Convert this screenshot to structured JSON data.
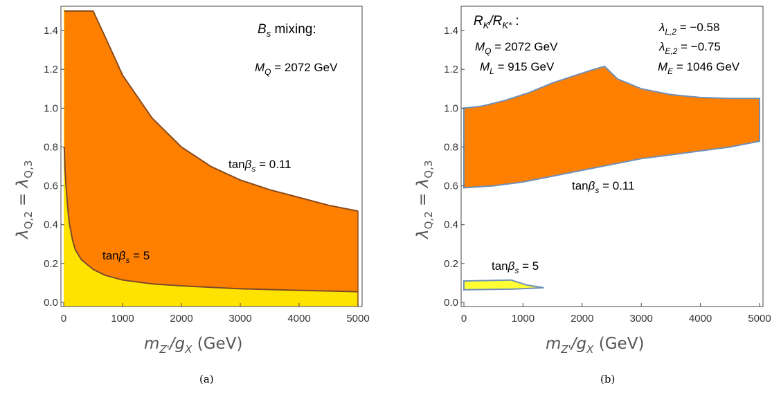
{
  "chart_data": [
    {
      "type": "area",
      "caption": "(a)",
      "xlabel": {
        "main": "m",
        "sub": "Z'",
        "slash": "/g",
        "sub2": "X",
        "units": " (GeV)"
      },
      "ylabel": {
        "main": "λ",
        "sub1": "Q,2",
        "eq": " = λ",
        "sub2": "Q,3"
      },
      "xlim": [
        0,
        5000
      ],
      "ylim": [
        0,
        1.5
      ],
      "xticks": [
        "0",
        "1000",
        "2000",
        "3000",
        "4000",
        "5000"
      ],
      "yticks": [
        "0.0",
        "0.2",
        "0.4",
        "0.6",
        "0.8",
        "1.0",
        "1.2",
        "1.4"
      ],
      "grid": false,
      "annotations": {
        "title": {
          "main": "B",
          "sub": "s",
          "rest": " mixing:"
        },
        "mass": {
          "main": "M",
          "sub": "Q",
          "rest": " = 2072 GeV"
        },
        "label_big": {
          "prefix": "tan",
          "greek": "β",
          "sub": "s",
          "rest": " = 0.11"
        },
        "label_small": {
          "prefix": "tan",
          "greek": "β",
          "sub": "s",
          "rest": " = 5"
        }
      },
      "series": [
        {
          "name": "tanβs = 0.11",
          "color": "#ff8000",
          "x": [
            10,
            60,
            150,
            300,
            500,
            700,
            1000,
            1500,
            2000,
            2500,
            3000,
            3500,
            4000,
            4500,
            5000
          ],
          "y": [
            1.5,
            1.5,
            1.5,
            1.5,
            1.5,
            1.37,
            1.17,
            0.95,
            0.8,
            0.7,
            0.63,
            0.58,
            0.54,
            0.5,
            0.47
          ]
        },
        {
          "name": "tanβs = 5",
          "color": "#ffe300",
          "x": [
            10,
            20,
            40,
            60,
            80,
            100,
            150,
            200,
            300,
            500,
            700,
            1000,
            1500,
            2000,
            3000,
            4000,
            5000
          ],
          "y": [
            0.8,
            0.7,
            0.6,
            0.52,
            0.45,
            0.4,
            0.32,
            0.27,
            0.22,
            0.17,
            0.14,
            0.115,
            0.095,
            0.085,
            0.07,
            0.062,
            0.055
          ]
        }
      ]
    },
    {
      "type": "area",
      "caption": "(b)",
      "xlabel": {
        "main": "m",
        "sub": "Z'",
        "slash": "/g",
        "sub2": "X",
        "units": " (GeV)"
      },
      "ylabel": {
        "main": "λ",
        "sub1": "Q,2",
        "eq": " = λ",
        "sub2": "Q,3"
      },
      "xlim": [
        0,
        5000
      ],
      "ylim": [
        0,
        1.5
      ],
      "xticks": [
        "0",
        "1000",
        "2000",
        "3000",
        "4000",
        "5000"
      ],
      "yticks": [
        "0.0",
        "0.2",
        "0.4",
        "0.6",
        "0.8",
        "1.0",
        "1.2",
        "1.4"
      ],
      "grid": false,
      "annotations": {
        "title": {
          "main": "R",
          "sub": "K",
          "mid": "/R",
          "sub2": "K*",
          "rest": " :"
        },
        "mass_q": {
          "main": "M",
          "sub": "Q",
          "rest": " = 2072 GeV"
        },
        "mass_l": {
          "main": "M",
          "sub": "L",
          "rest": " = 915 GeV"
        },
        "lambda_l": {
          "main": "λ",
          "sub": "L,2",
          "rest": " = −0.58"
        },
        "lambda_e": {
          "main": "λ",
          "sub": "E,2",
          "rest": " = −0.75"
        },
        "mass_e": {
          "main": "M",
          "sub": "E",
          "rest": " = 1046 GeV"
        },
        "label_big": {
          "prefix": "tan",
          "greek": "β",
          "sub": "s",
          "rest": " = 0.11"
        },
        "label_small": {
          "prefix": "tan",
          "greek": "β",
          "sub": "s",
          "rest": " = 5"
        }
      },
      "series": [
        {
          "name": "tanβs = 0.11",
          "color": "#ff8000",
          "upper": {
            "x": [
              0,
              300,
              700,
              1100,
              1500,
              1900,
              2200,
              2380,
              2600,
              3000,
              3500,
              4000,
              4500,
              5000
            ],
            "y": [
              1.0,
              1.01,
              1.04,
              1.08,
              1.13,
              1.17,
              1.2,
              1.215,
              1.15,
              1.1,
              1.07,
              1.055,
              1.05,
              1.05
            ]
          },
          "lower": {
            "x": [
              0,
              500,
              1000,
              1500,
              2000,
              2500,
              3000,
              3500,
              4000,
              4500,
              5000
            ],
            "y": [
              0.59,
              0.6,
              0.62,
              0.65,
              0.68,
              0.71,
              0.74,
              0.76,
              0.78,
              0.8,
              0.83
            ]
          }
        },
        {
          "name": "tanβs = 5",
          "color": "#ffff33",
          "upper": {
            "x": [
              0,
              800,
              1050,
              1350
            ],
            "y": [
              0.11,
              0.115,
              0.09,
              0.075
            ]
          },
          "lower": {
            "x": [
              0,
              800,
              1350
            ],
            "y": [
              0.065,
              0.068,
              0.075
            ]
          }
        }
      ]
    }
  ]
}
